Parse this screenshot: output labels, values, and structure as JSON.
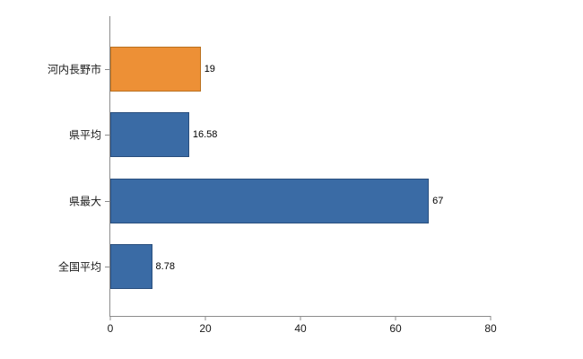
{
  "chart_data": {
    "type": "bar",
    "orientation": "horizontal",
    "title": "",
    "xlabel": "",
    "ylabel": "",
    "categories": [
      "河内長野市",
      "県平均",
      "県最大",
      "全国平均"
    ],
    "values": [
      19,
      16.58,
      67,
      8.78
    ],
    "value_labels": [
      "19",
      "16.58",
      "67",
      "8.78"
    ],
    "xlim": [
      0,
      80
    ],
    "xticks": [
      0,
      20,
      40,
      60,
      80
    ],
    "grid": false,
    "legend": "none",
    "bar_fill_colors": [
      "#ED9036",
      "#3A6BA5",
      "#3A6BA5",
      "#3A6BA5"
    ],
    "bar_border_colors": [
      "#B9701F",
      "#2A4F7E",
      "#2A4F7E",
      "#2A4F7E"
    ],
    "axis_color": "#8c8c8c",
    "background_color": "#ffffff"
  }
}
